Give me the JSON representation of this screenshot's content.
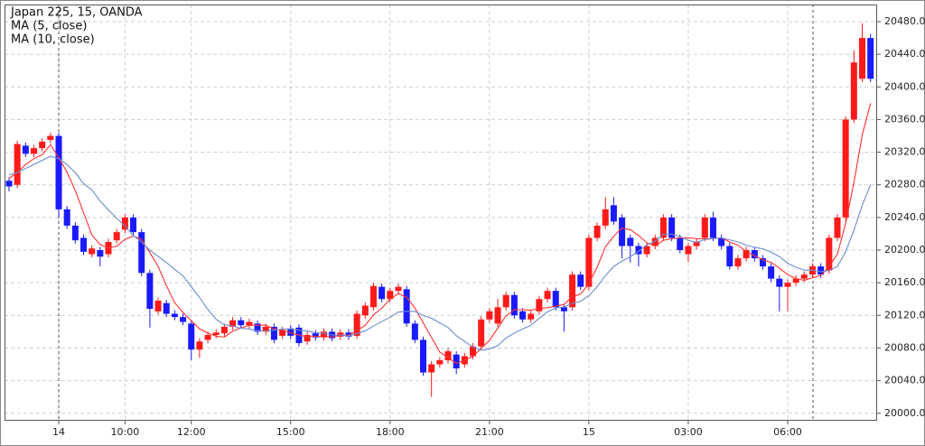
{
  "chart_data": {
    "type": "candlestick",
    "title": "Japan 225, 15, OANDA",
    "categories": [
      null,
      null,
      null,
      null,
      null,
      null,
      "14",
      null,
      null,
      null,
      null,
      null,
      null,
      null,
      "10:00",
      null,
      null,
      null,
      null,
      null,
      null,
      null,
      "12:00",
      null,
      null,
      null,
      null,
      null,
      null,
      null,
      null,
      null,
      null,
      null,
      "15:00",
      null,
      null,
      null,
      null,
      null,
      null,
      null,
      null,
      null,
      null,
      null,
      "18:00",
      null,
      null,
      null,
      null,
      null,
      null,
      null,
      null,
      null,
      null,
      null,
      "21:00",
      null,
      null,
      null,
      null,
      null,
      null,
      null,
      null,
      null,
      null,
      null,
      "15",
      null,
      null,
      null,
      null,
      null,
      null,
      null,
      null,
      null,
      null,
      null,
      "03:00",
      null,
      null,
      null,
      null,
      null,
      null,
      null,
      null,
      null,
      null,
      null,
      "06:00",
      null,
      null,
      null,
      null,
      null,
      null,
      null,
      null,
      null,
      null
    ],
    "open": [
      20285,
      20280,
      20328,
      20318,
      20325,
      20335,
      20340,
      20250,
      20230,
      20215,
      20195,
      20200,
      20195,
      20212,
      20225,
      20240,
      20222,
      20172,
      20125,
      20135,
      20122,
      20118,
      20110,
      20078,
      20090,
      20096,
      20098,
      20106,
      20114,
      20108,
      20110,
      20100,
      20106,
      20095,
      20104,
      20105,
      20088,
      20098,
      20093,
      20100,
      20094,
      20099,
      20095,
      20120,
      20130,
      20155,
      20140,
      20150,
      20152,
      20110,
      20090,
      20050,
      20060,
      20065,
      20072,
      20060,
      20070,
      20082,
      20115,
      20110,
      20130,
      20145,
      20125,
      20115,
      20125,
      20140,
      20150,
      20130,
      20130,
      20170,
      20155,
      20215,
      20230,
      20255,
      20240,
      20215,
      20205,
      20195,
      20205,
      20215,
      20240,
      20215,
      20195,
      20205,
      20215,
      20240,
      20215,
      20205,
      20180,
      20190,
      20200,
      20190,
      20180,
      20165,
      20155,
      20160,
      20165,
      20170,
      20180,
      20175,
      20215,
      20240,
      20360,
      20410,
      20460
    ],
    "high": [
      20289,
      20334,
      20332,
      20329,
      20337,
      20344,
      20344,
      20254,
      20234,
      20219,
      20206,
      20204,
      20214,
      20226,
      20244,
      20244,
      20226,
      20176,
      20142,
      20139,
      20126,
      20122,
      20114,
      20092,
      20100,
      20103,
      20110,
      20118,
      20118,
      20116,
      20114,
      20110,
      20110,
      20106,
      20108,
      20109,
      20100,
      20102,
      20104,
      20104,
      20103,
      20103,
      20126,
      20136,
      20160,
      20159,
      20154,
      20159,
      20156,
      20114,
      20094,
      20064,
      20069,
      20080,
      20076,
      20074,
      20086,
      20119,
      20129,
      20140,
      20149,
      20149,
      20129,
      20126,
      20144,
      20154,
      20154,
      20134,
      20174,
      20174,
      20219,
      20234,
      20265,
      20265,
      20244,
      20219,
      20209,
      20209,
      20219,
      20244,
      20244,
      20219,
      20209,
      20214,
      20244,
      20247,
      20219,
      20209,
      20194,
      20204,
      20204,
      20194,
      20184,
      20169,
      20164,
      20169,
      20174,
      20184,
      20184,
      20219,
      20244,
      20364,
      20445,
      20478,
      20465
    ],
    "low": [
      20272,
      20276,
      20314,
      20314,
      20321,
      20331,
      20240,
      20226,
      20208,
      20194,
      20191,
      20180,
      20191,
      20208,
      20221,
      20218,
      20168,
      20105,
      20121,
      20118,
      20114,
      20108,
      20065,
      20068,
      20086,
      20092,
      20094,
      20102,
      20104,
      20104,
      20096,
      20096,
      20086,
      20091,
      20091,
      20082,
      20084,
      20089,
      20089,
      20088,
      20090,
      20090,
      20091,
      20116,
      20126,
      20136,
      20136,
      20146,
      20106,
      20086,
      20046,
      20020,
      20056,
      20061,
      20048,
      20056,
      20066,
      20078,
      20111,
      20106,
      20126,
      20116,
      20111,
      20111,
      20121,
      20136,
      20126,
      20100,
      20126,
      20151,
      20151,
      20211,
      20226,
      20231,
      20190,
      20185,
      20180,
      20191,
      20201,
      20211,
      20211,
      20196,
      20185,
      20201,
      20211,
      20211,
      20201,
      20176,
      20176,
      20186,
      20186,
      20176,
      20161,
      20125,
      20125,
      20156,
      20161,
      20166,
      20166,
      20171,
      20211,
      20236,
      20356,
      20406,
      20406
    ],
    "close": [
      20278,
      20330,
      20318,
      20325,
      20333,
      20340,
      20250,
      20230,
      20212,
      20198,
      20202,
      20192,
      20210,
      20222,
      20240,
      20222,
      20172,
      20128,
      20138,
      20122,
      20118,
      20112,
      20078,
      20088,
      20096,
      20099,
      20106,
      20114,
      20108,
      20112,
      20100,
      20106,
      20090,
      20102,
      20095,
      20086,
      20096,
      20093,
      20100,
      20092,
      20099,
      20094,
      20122,
      20132,
      20156,
      20140,
      20150,
      20155,
      20110,
      20090,
      20050,
      20060,
      20065,
      20076,
      20055,
      20070,
      20082,
      20115,
      20125,
      20130,
      20145,
      20120,
      20115,
      20122,
      20140,
      20150,
      20130,
      20125,
      20170,
      20155,
      20215,
      20230,
      20250,
      20235,
      20205,
      20205,
      20195,
      20205,
      20215,
      20240,
      20215,
      20200,
      20205,
      20210,
      20240,
      20215,
      20205,
      20180,
      20190,
      20200,
      20190,
      20180,
      20165,
      20155,
      20160,
      20165,
      20170,
      20180,
      20170,
      20215,
      20240,
      20360,
      20430,
      20460,
      20410
    ],
    "up_color": "#ff1a1a",
    "down_color": "#1a1aff",
    "series": [
      {
        "name": "MA (5, close)",
        "color": "#ff3030",
        "values": [
          20288,
          20295,
          20305,
          20312,
          20316.8,
          20329.2,
          20313.2,
          20295.6,
          20273,
          20246,
          20218.4,
          20206.8,
          20202.8,
          20204.8,
          20213.2,
          20217.2,
          20213.2,
          20196.8,
          20180,
          20156.4,
          20135.6,
          20123.6,
          20113.6,
          20103.6,
          20098.4,
          20094.6,
          20093.4,
          20100.6,
          20104.6,
          20107.8,
          20108,
          20108,
          20103.2,
          20102,
          20098.6,
          20095.8,
          20093.8,
          20094.4,
          20094,
          20093.4,
          20096,
          20095.6,
          20101.4,
          20107.8,
          20120.6,
          20128.8,
          20140,
          20146.6,
          20142.2,
          20129,
          20111,
          20093,
          20075,
          20068.2,
          20061.2,
          20065.2,
          20069.6,
          20079.6,
          20089.4,
          20104.4,
          20119.4,
          20127,
          20127,
          20126.4,
          20128.4,
          20129.4,
          20131.4,
          20133.4,
          20143,
          20146,
          20159,
          20179,
          20204,
          20217,
          20227,
          20225,
          20218,
          20209,
          20205,
          20212,
          20214,
          20215,
          20215,
          20214,
          20214,
          20214,
          20215,
          20210,
          20206,
          20198,
          20193,
          20188,
          20185,
          20178,
          20170,
          20165,
          20163,
          20166,
          20169,
          20180,
          20195,
          20233,
          20283,
          20341,
          20380
        ]
      },
      {
        "name": "MA (10, close)",
        "color": "#6b8ccf",
        "values": [
          20292,
          20295,
          20300,
          20305,
          20310,
          20315,
          20312,
          20305,
          20295,
          20281.4,
          20273.8,
          20260,
          20249.2,
          20238.9,
          20229.6,
          20217.8,
          20210,
          20199.8,
          20192.4,
          20184.8,
          20176.4,
          20168.4,
          20155.2,
          20141.8,
          20127.4,
          20115.1,
          20108.5,
          20107.1,
          20104.1,
          20103.1,
          20101.3,
          20100.7,
          20101.9,
          20103.3,
          20103.2,
          20101.9,
          20100.9,
          20098.8,
          20098,
          20096,
          20095.9,
          20094.7,
          20097.9,
          20100.9,
          20107,
          20112.4,
          20117.8,
          20124,
          20125,
          20124.8,
          20119.9,
          20116.5,
          20110.8,
          20105.2,
          20095.1,
          20088.1,
          20081.3,
          20077.3,
          20078.8,
          20082.8,
          20092.3,
          20098.3,
          20103.3,
          20107.9,
          20116.4,
          20124.4,
          20129.2,
          20130.2,
          20134.7,
          20137.2,
          20144.2,
          20155.2,
          20168.7,
          20180,
          20186.5,
          20192,
          20198.5,
          20206.5,
          20211,
          20219.5,
          20219.5,
          20216.5,
          20212,
          20209.5,
          20213,
          20214,
          20215,
          20212.5,
          20210,
          20206,
          20203.5,
          20201.5,
          20197.5,
          20192,
          20184,
          20179,
          20175.5,
          20175.5,
          20173.5,
          20175,
          20180,
          20198,
          20224.5,
          20255,
          20280
        ]
      }
    ],
    "ylim": [
      19992,
      20501
    ],
    "yticks": [
      {
        "value": 20000,
        "label": "20000.0"
      },
      {
        "value": 20040,
        "label": "20040.0"
      },
      {
        "value": 20080,
        "label": "20080.0"
      },
      {
        "value": 20120,
        "label": "20120.0"
      },
      {
        "value": 20160,
        "label": "20160.0"
      },
      {
        "value": 20200,
        "label": "20200.0"
      },
      {
        "value": 20240,
        "label": "20240.0"
      },
      {
        "value": 20280,
        "label": "20280.0"
      },
      {
        "value": 20320,
        "label": "20320.0"
      },
      {
        "value": 20360,
        "label": "20360.0"
      },
      {
        "value": 20400,
        "label": "20400.0"
      },
      {
        "value": 20440,
        "label": "20440.0"
      },
      {
        "value": 20480,
        "label": "20480.0"
      }
    ],
    "grid": true
  }
}
